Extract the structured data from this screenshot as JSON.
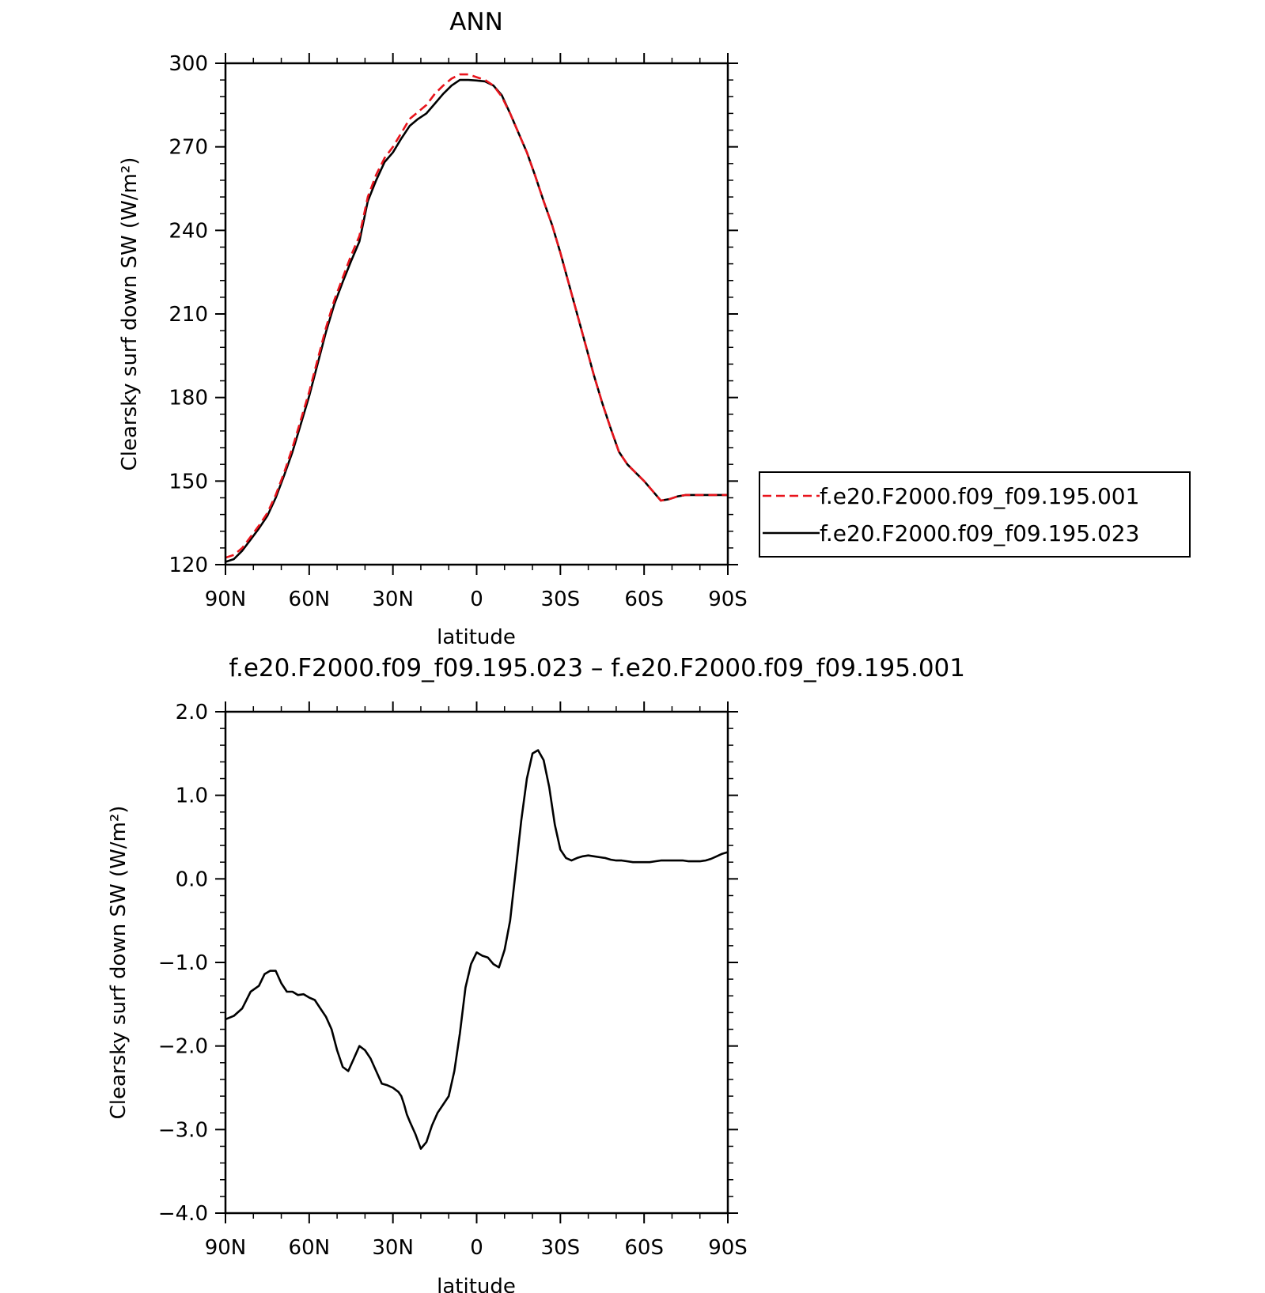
{
  "chart_data": [
    {
      "type": "line",
      "title": "ANN",
      "xlabel": "latitude",
      "ylabel": "Clearsky surf down SW (W/m²)",
      "xlim": [
        90,
        -90
      ],
      "ylim": [
        120,
        300
      ],
      "xticks": [
        90,
        60,
        30,
        0,
        -30,
        -60,
        -90
      ],
      "xtick_labels": [
        "90N",
        "60N",
        "30N",
        "0",
        "30S",
        "60S",
        "90S"
      ],
      "yticks": [
        120,
        150,
        180,
        210,
        240,
        270,
        300
      ],
      "ytick_labels": [
        "120",
        "150",
        "180",
        "210",
        "240",
        "270",
        "300"
      ],
      "legend_position": "right",
      "series": [
        {
          "name": "f.e20.F2000.f09_f09.195.001",
          "color": "#e8141c",
          "dash": "dashed",
          "x": [
            90,
            87,
            84,
            81,
            78,
            75,
            72,
            69,
            66,
            63,
            60,
            57,
            54,
            51,
            48,
            45,
            42,
            39,
            36,
            33,
            30,
            27,
            24,
            21,
            18,
            15,
            12,
            9,
            6,
            3,
            0,
            -3,
            -6,
            -9,
            -12,
            -15,
            -18,
            -21,
            -24,
            -27,
            -30,
            -33,
            -36,
            -39,
            -42,
            -45,
            -48,
            -51,
            -54,
            -57,
            -60,
            -63,
            -66,
            -69,
            -72,
            -75,
            -78,
            -81,
            -84,
            -87,
            -90
          ],
          "y": [
            122.5,
            123.5,
            126,
            130,
            134,
            138.5,
            145,
            153,
            162,
            172,
            182,
            193.5,
            205,
            215,
            223,
            231,
            238,
            252,
            260,
            266,
            270,
            275,
            280,
            282.5,
            285,
            289,
            292,
            294.5,
            296,
            296,
            295,
            294,
            292,
            288,
            282,
            275,
            268,
            259.5,
            250.5,
            242,
            232,
            221,
            210,
            199,
            188,
            178,
            169,
            160.5,
            156,
            153,
            150,
            146.5,
            143,
            143.5,
            144.5,
            145,
            145,
            145,
            145,
            145,
            145
          ]
        },
        {
          "name": "f.e20.F2000.f09_f09.195.023",
          "color": "#000000",
          "dash": "solid",
          "x": [
            90,
            87,
            84,
            81,
            78,
            75,
            72,
            69,
            66,
            63,
            60,
            57,
            54,
            51,
            48,
            45,
            42,
            39,
            36,
            33,
            30,
            27,
            24,
            21,
            18,
            15,
            12,
            9,
            6,
            3,
            0,
            -3,
            -6,
            -9,
            -12,
            -15,
            -18,
            -21,
            -24,
            -27,
            -30,
            -33,
            -36,
            -39,
            -42,
            -45,
            -48,
            -51,
            -54,
            -57,
            -60,
            -63,
            -66,
            -69,
            -72,
            -75,
            -78,
            -81,
            -84,
            -87,
            -90
          ],
          "y": [
            121,
            122,
            125,
            129,
            133,
            137.5,
            144,
            152,
            160.5,
            170.5,
            180.5,
            192,
            203.5,
            213.5,
            221.5,
            229,
            236,
            250.5,
            258,
            264.5,
            268,
            273,
            277.5,
            280,
            282,
            285.5,
            289,
            292,
            294,
            294,
            293.8,
            293.5,
            292,
            288.5,
            282,
            275,
            268,
            259.5,
            250.5,
            242,
            232,
            221,
            210,
            199,
            188,
            178,
            169,
            160.5,
            156,
            153,
            150,
            146.5,
            143,
            143.5,
            144.5,
            145,
            145,
            145,
            145,
            145,
            145
          ]
        }
      ]
    },
    {
      "type": "line",
      "title": "f.e20.F2000.f09_f09.195.023 – f.e20.F2000.f09_f09.195.001",
      "xlabel": "latitude",
      "ylabel": "Clearsky surf down SW (W/m²)",
      "xlim": [
        90,
        -90
      ],
      "ylim": [
        -4.0,
        2.0
      ],
      "xticks": [
        90,
        60,
        30,
        0,
        -30,
        -60,
        -90
      ],
      "xtick_labels": [
        "90N",
        "60N",
        "30N",
        "0",
        "30S",
        "60S",
        "90S"
      ],
      "yticks": [
        -4.0,
        -3.0,
        -2.0,
        -1.0,
        0.0,
        1.0,
        2.0
      ],
      "ytick_labels": [
        "−4.0",
        "−3.0",
        "−2.0",
        "−1.0",
        "0.0",
        "1.0",
        "2.0"
      ],
      "series": [
        {
          "color": "#000000",
          "dash": "solid",
          "x": [
            90,
            87,
            84,
            81,
            78,
            76,
            74,
            72,
            70,
            68,
            66,
            64,
            62,
            60,
            58,
            56,
            54,
            52,
            50,
            48,
            46,
            44,
            42,
            40,
            38,
            36,
            34,
            32,
            30,
            28,
            27,
            26,
            25,
            24,
            22,
            20,
            18,
            16,
            14,
            12,
            10,
            8,
            6,
            4,
            2,
            0,
            -2,
            -4,
            -6,
            -8,
            -10,
            -12,
            -14,
            -16,
            -18,
            -20,
            -22,
            -24,
            -26,
            -28,
            -30,
            -32,
            -34,
            -36,
            -38,
            -40,
            -42,
            -44,
            -46,
            -48,
            -50,
            -52,
            -54,
            -56,
            -58,
            -60,
            -62,
            -64,
            -66,
            -68,
            -70,
            -72,
            -74,
            -76,
            -78,
            -80,
            -82,
            -84,
            -86,
            -88,
            -90
          ],
          "y": [
            -1.68,
            -1.64,
            -1.55,
            -1.35,
            -1.28,
            -1.14,
            -1.1,
            -1.1,
            -1.25,
            -1.35,
            -1.35,
            -1.39,
            -1.38,
            -1.42,
            -1.45,
            -1.55,
            -1.65,
            -1.8,
            -2.05,
            -2.25,
            -2.3,
            -2.15,
            -2.0,
            -2.05,
            -2.15,
            -2.3,
            -2.45,
            -2.47,
            -2.5,
            -2.55,
            -2.6,
            -2.7,
            -2.82,
            -2.9,
            -3.05,
            -3.23,
            -3.15,
            -2.95,
            -2.8,
            -2.7,
            -2.6,
            -2.3,
            -1.85,
            -1.3,
            -1.02,
            -0.88,
            -0.92,
            -0.94,
            -1.02,
            -1.06,
            -0.85,
            -0.5,
            0.1,
            0.7,
            1.2,
            1.5,
            1.54,
            1.42,
            1.1,
            0.65,
            0.35,
            0.25,
            0.22,
            0.25,
            0.27,
            0.28,
            0.27,
            0.26,
            0.25,
            0.23,
            0.22,
            0.22,
            0.21,
            0.2,
            0.2,
            0.2,
            0.2,
            0.21,
            0.22,
            0.22,
            0.22,
            0.22,
            0.22,
            0.21,
            0.21,
            0.21,
            0.22,
            0.24,
            0.27,
            0.3,
            0.32
          ]
        }
      ]
    }
  ]
}
